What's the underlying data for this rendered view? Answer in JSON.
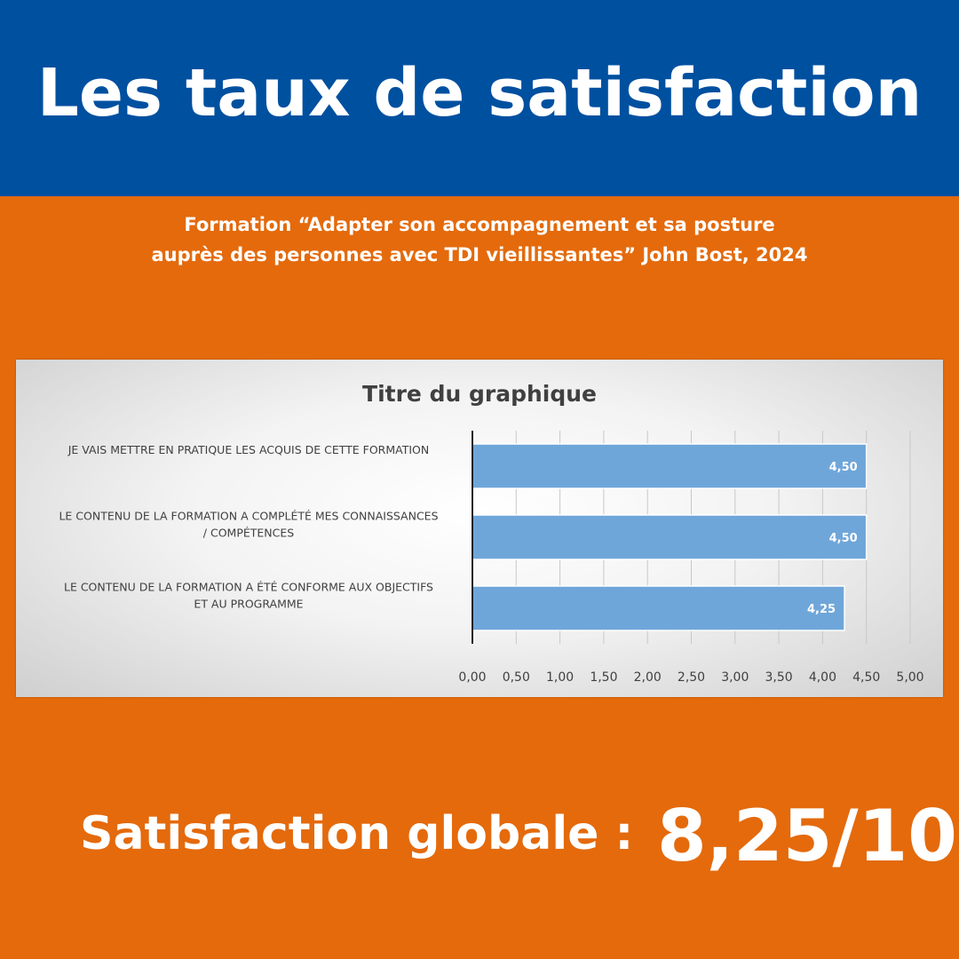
{
  "header": {
    "title": "Les taux de satisfaction"
  },
  "subtitle": {
    "line1": "Formation “Adapter son accompagnement et sa posture",
    "line2": "auprès des personnes avec TDI vieillissantes” John Bost, 2024"
  },
  "chart_data": {
    "type": "bar",
    "orientation": "horizontal",
    "title": "Titre du graphique",
    "categories": [
      [
        "JE VAIS METTRE EN PRATIQUE LES ACQUIS DE CETTE FORMATION"
      ],
      [
        "LE CONTENU DE LA FORMATION A COMPLÉTÉ MES CONNAISSANCES",
        "/ COMPÉTENCES"
      ],
      [
        "LE CONTENU DE LA FORMATION A ÉTÉ CONFORME AUX OBJECTIFS",
        "ET AU PROGRAMME"
      ]
    ],
    "values": [
      4.5,
      4.5,
      4.25
    ],
    "value_labels": [
      "4,50",
      "4,50",
      "4,25"
    ],
    "xlim": [
      0,
      5
    ],
    "x_ticks": [
      0,
      0.5,
      1,
      1.5,
      2,
      2.5,
      3,
      3.5,
      4,
      4.5,
      5
    ],
    "x_tick_labels": [
      "0,00",
      "0,50",
      "1,00",
      "1,50",
      "2,00",
      "2,50",
      "3,00",
      "3,50",
      "4,00",
      "4,50",
      "5,00"
    ],
    "grid": true,
    "bar_color": "#6fa6d9"
  },
  "summary": {
    "label": "Satisfaction globale :",
    "value": "8,25/10"
  }
}
